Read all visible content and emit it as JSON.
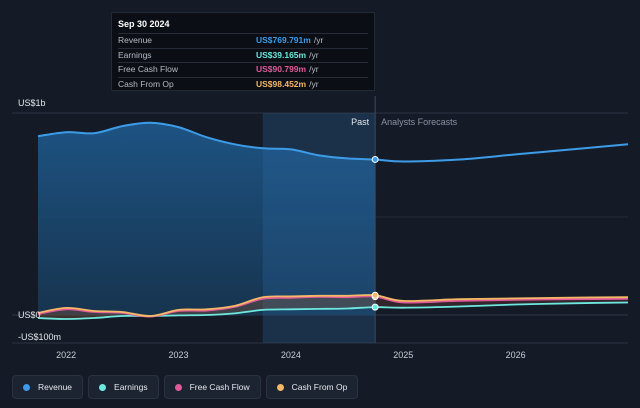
{
  "tooltip": {
    "date": "Sep 30 2024",
    "rows": [
      {
        "label": "Revenue",
        "value": "US$769.791m",
        "unit": "/yr",
        "color": "#3d9ce8"
      },
      {
        "label": "Earnings",
        "value": "US$39.165m",
        "unit": "/yr",
        "color": "#6ee8df"
      },
      {
        "label": "Free Cash Flow",
        "value": "US$90.799m",
        "unit": "/yr",
        "color": "#e05a9a"
      },
      {
        "label": "Cash From Op",
        "value": "US$98.452m",
        "unit": "/yr",
        "color": "#f5b867"
      }
    ]
  },
  "legend": [
    {
      "label": "Revenue",
      "color": "#3d9ce8"
    },
    {
      "label": "Earnings",
      "color": "#6ee8df"
    },
    {
      "label": "Free Cash Flow",
      "color": "#e05a9a"
    },
    {
      "label": "Cash From Op",
      "color": "#f5b867"
    }
  ],
  "chart_data": {
    "type": "line",
    "y_unit_labels": {
      "top": "US$1b",
      "zero": "US$0",
      "bottom": "-US$100m"
    },
    "ylim": [
      -100,
      1000
    ],
    "xlim": [
      2021.75,
      2027.0
    ],
    "x_ticks": [
      "2022",
      "2023",
      "2024",
      "2025",
      "2026"
    ],
    "divider_x": 2024.75,
    "highlight_start_x": 2023.75,
    "past_label": "Past",
    "forecast_label": "Analysts Forecasts",
    "series": [
      {
        "name": "Revenue",
        "color": "#3d9ce8",
        "x": [
          2021.75,
          2022.0,
          2022.25,
          2022.5,
          2022.75,
          2023.0,
          2023.25,
          2023.5,
          2023.75,
          2024.0,
          2024.25,
          2024.5,
          2024.75,
          2025.0,
          2025.5,
          2026.0,
          2026.5,
          2027.0
        ],
        "y": [
          885,
          905,
          900,
          935,
          952,
          930,
          880,
          845,
          825,
          820,
          790,
          775,
          770,
          760,
          770,
          795,
          820,
          845
        ]
      },
      {
        "name": "Earnings",
        "color": "#6ee8df",
        "x": [
          2021.75,
          2022.0,
          2022.25,
          2022.5,
          2022.75,
          2023.0,
          2023.25,
          2023.5,
          2023.75,
          2024.0,
          2024.25,
          2024.5,
          2024.75,
          2025.0,
          2025.5,
          2026.0,
          2026.5,
          2027.0
        ],
        "y": [
          -15,
          -20,
          -15,
          -5,
          -5,
          -2,
          0,
          8,
          25,
          28,
          30,
          32,
          39,
          36,
          42,
          52,
          58,
          62
        ]
      },
      {
        "name": "Free Cash Flow",
        "color": "#e05a9a",
        "x": [
          2021.75,
          2022.0,
          2022.25,
          2022.5,
          2022.75,
          2023.0,
          2023.25,
          2023.5,
          2023.75,
          2024.0,
          2024.25,
          2024.5,
          2024.75,
          2025.0,
          2025.5,
          2026.0,
          2026.5,
          2027.0
        ],
        "y": [
          5,
          28,
          15,
          10,
          -8,
          20,
          22,
          40,
          80,
          85,
          90,
          88,
          91,
          62,
          70,
          75,
          78,
          80
        ]
      },
      {
        "name": "Cash From Op",
        "color": "#f5b867",
        "x": [
          2021.75,
          2022.0,
          2022.25,
          2022.5,
          2022.75,
          2023.0,
          2023.25,
          2023.5,
          2023.75,
          2024.0,
          2024.25,
          2024.5,
          2024.75,
          2025.0,
          2025.5,
          2026.0,
          2026.5,
          2027.0
        ],
        "y": [
          10,
          35,
          20,
          15,
          -5,
          25,
          28,
          45,
          88,
          92,
          95,
          95,
          98,
          70,
          78,
          82,
          86,
          88
        ]
      }
    ]
  }
}
